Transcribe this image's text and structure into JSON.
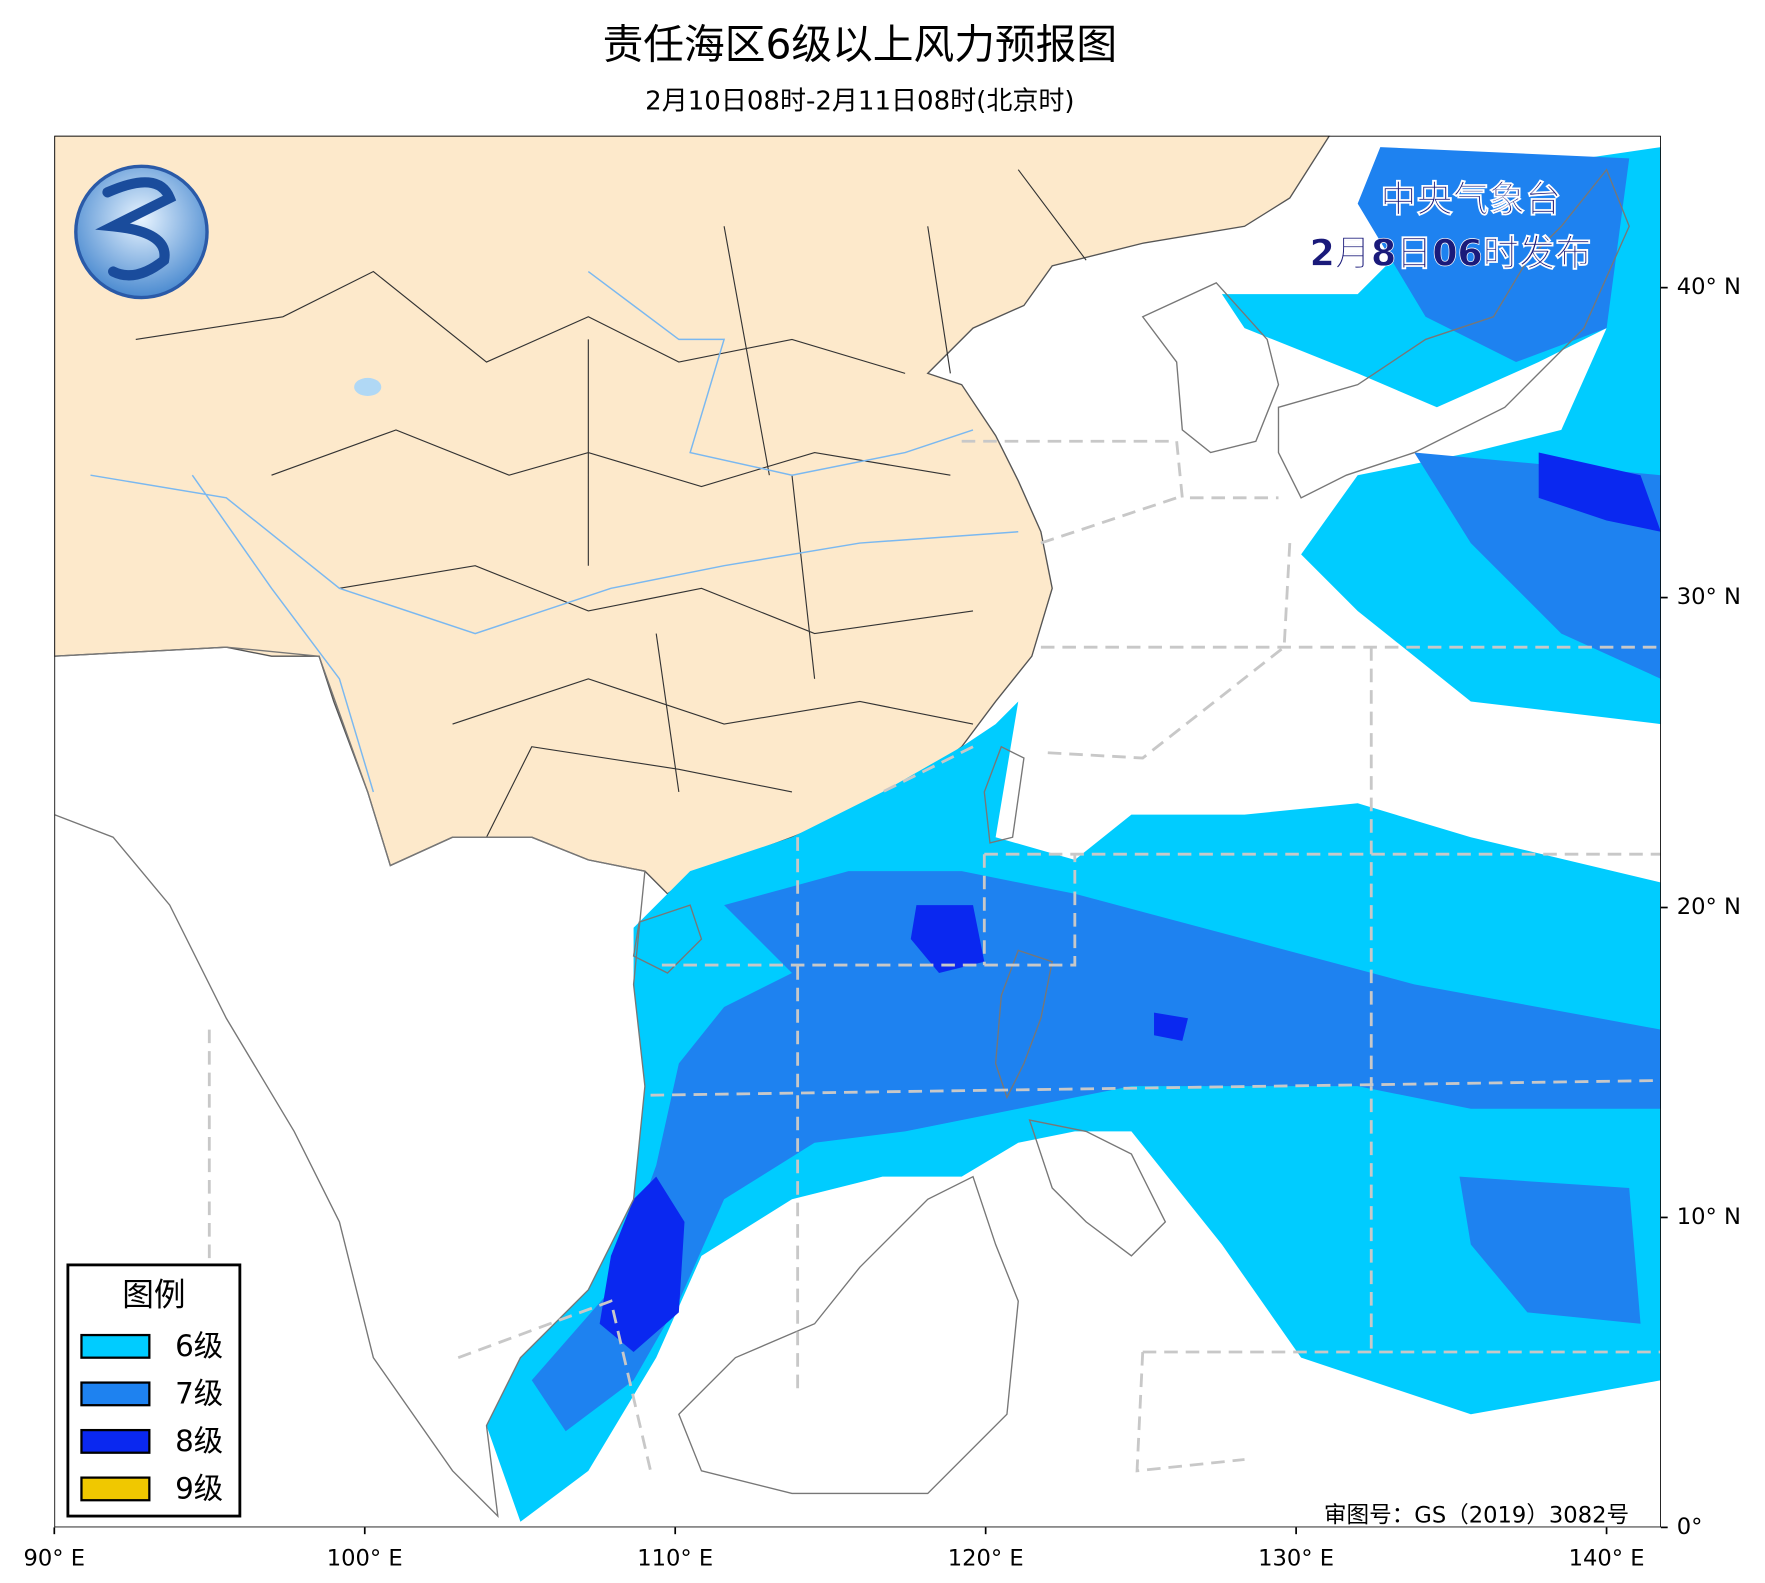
{
  "header": {
    "title": "责任海区6级以上风力预报图",
    "subtitle": "2月10日08时-2月11日08时(北京时)"
  },
  "issuer": {
    "name": "中央气象台",
    "issued": "2月8日06时发布"
  },
  "legend": {
    "title": "图例",
    "items": [
      {
        "label": "6级",
        "color": "#00ccff"
      },
      {
        "label": "7级",
        "color": "#1e82f0"
      },
      {
        "label": "8级",
        "color": "#0a28f0"
      },
      {
        "label": "9级",
        "color": "#f0c800"
      }
    ]
  },
  "map": {
    "xlim": [
      90,
      141.75
    ],
    "ylim": [
      0,
      44.9
    ],
    "xticks": [
      {
        "value": 90,
        "label": "90° E"
      },
      {
        "value": 100,
        "label": "100° E"
      },
      {
        "value": 110,
        "label": "110° E"
      },
      {
        "value": 120,
        "label": "120° E"
      },
      {
        "value": 130,
        "label": "130° E"
      },
      {
        "value": 140,
        "label": "140° E"
      }
    ],
    "yticks": [
      {
        "value": 0,
        "label": "0°"
      },
      {
        "value": 10,
        "label": "10° N"
      },
      {
        "value": 20,
        "label": "20° N"
      },
      {
        "value": 30,
        "label": "30° N"
      },
      {
        "value": 40,
        "label": "40° N"
      }
    ]
  },
  "approval": "审图号：GS（2019）3082号"
}
